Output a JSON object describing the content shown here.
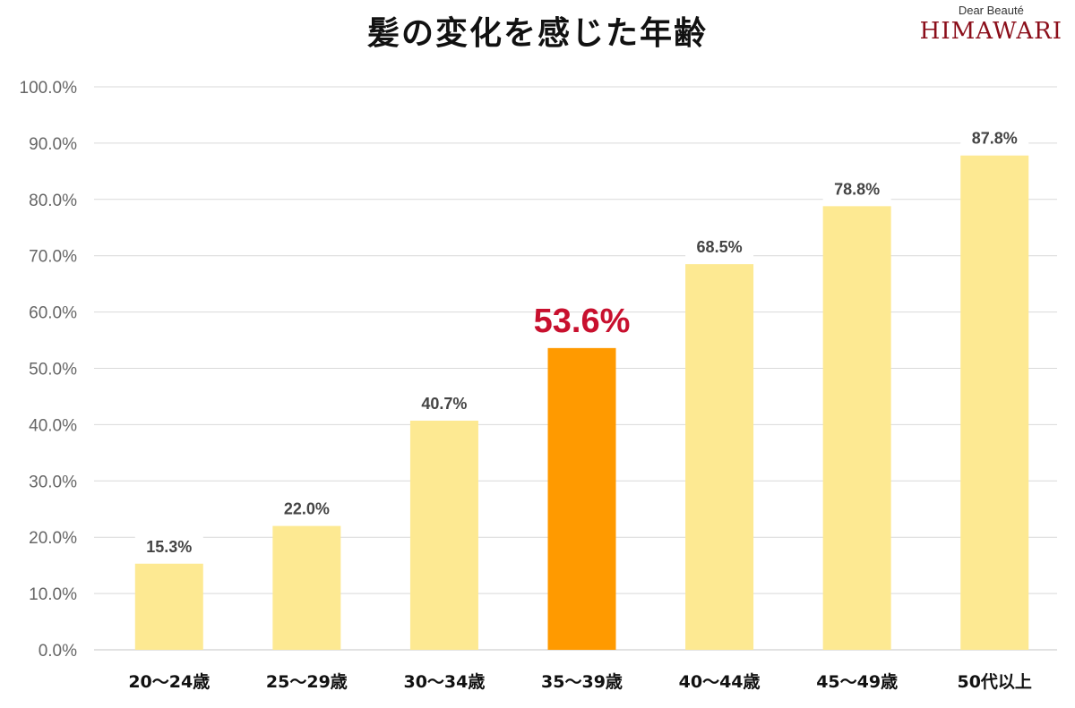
{
  "title": "髪の変化を感じた年齢",
  "brand": {
    "sub": "Dear Beauté",
    "name": "HIMAWARI"
  },
  "colors": {
    "bar": "#fde992",
    "highlight_bar": "#ff9a00",
    "highlight_label": "#c8102e",
    "grid": "#d9d9d9"
  },
  "chart_data": {
    "type": "bar",
    "title": "髪の変化を感じた年齢",
    "categories": [
      "20～24歳",
      "25～29歳",
      "30～34歳",
      "35～39歳",
      "40～44歳",
      "45～49歳",
      "50代以上"
    ],
    "values": [
      15.3,
      22.0,
      40.7,
      53.6,
      68.5,
      78.8,
      87.8
    ],
    "value_labels": [
      "15.3%",
      "22.0%",
      "40.7%",
      "53.6%",
      "68.5%",
      "78.8%",
      "87.8%"
    ],
    "highlight_index": 3,
    "ylim": [
      0,
      100
    ],
    "yticks": [
      0,
      10,
      20,
      30,
      40,
      50,
      60,
      70,
      80,
      90,
      100
    ],
    "ytick_labels": [
      "0.0%",
      "10.0%",
      "20.0%",
      "30.0%",
      "40.0%",
      "50.0%",
      "60.0%",
      "70.0%",
      "80.0%",
      "90.0%",
      "100.0%"
    ],
    "grid": true,
    "xlabel": "",
    "ylabel": ""
  }
}
